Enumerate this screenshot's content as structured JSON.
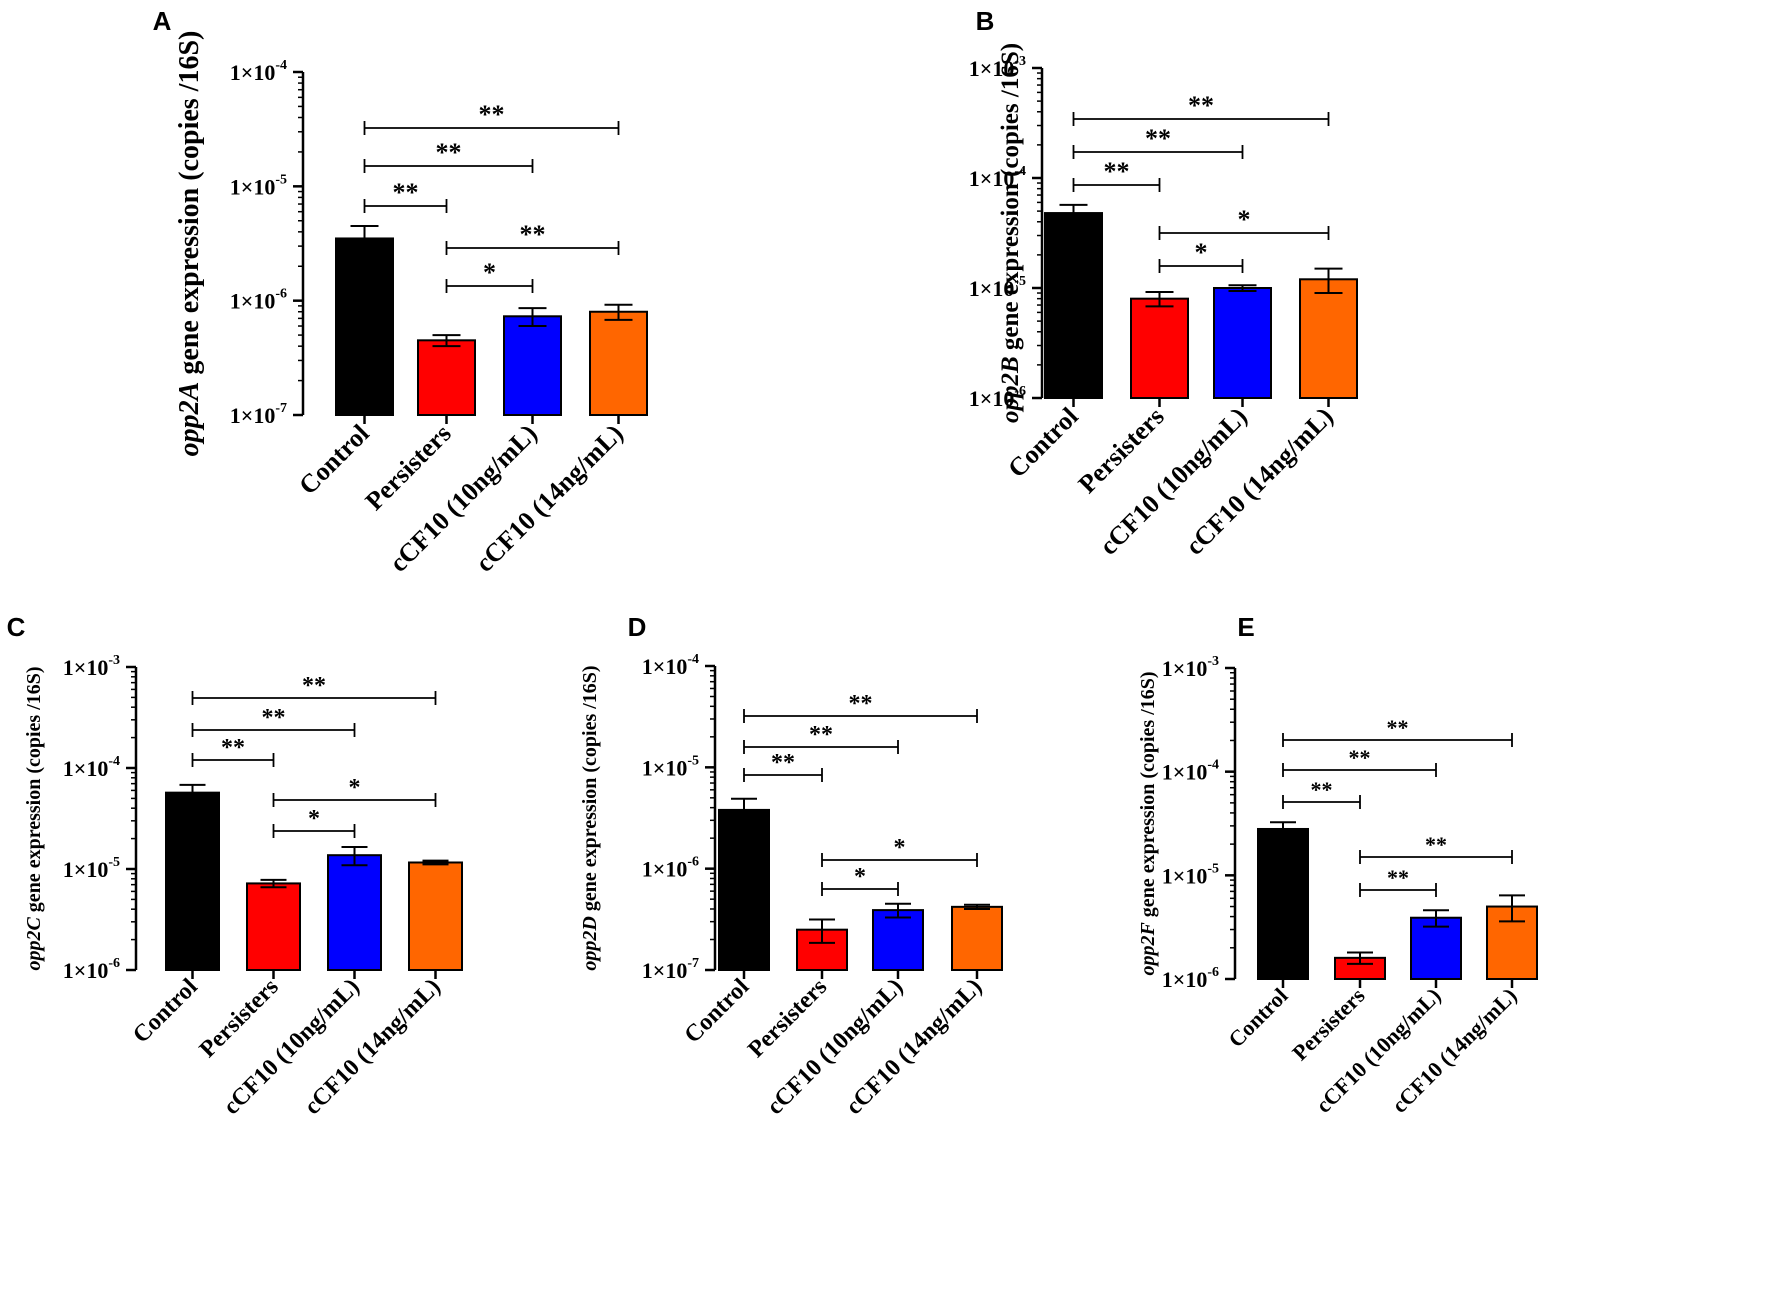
{
  "figure": {
    "colors": {
      "Control": "#000000",
      "Persisters": "#ff0000",
      "cCF10 (10ng/mL)": "#0000ff",
      "cCF10 (14ng/mL)": "#ff6600"
    }
  },
  "chart_data": [
    {
      "panel": "A",
      "type": "bar",
      "yscale": "log",
      "gene": "opp2A",
      "ylabel_suffix": " gene expression (copies /16S)",
      "categories": [
        "Control",
        "Persisters",
        "cCF10 (10ng/mL)",
        "cCF10 (14ng/mL)"
      ],
      "values": [
        3.5e-06,
        4.5e-07,
        7.3e-07,
        8e-07
      ],
      "errors": [
        1e-06,
        5e-08,
        1.3e-07,
        1.2e-07
      ],
      "ylim": [
        1e-07,
        0.0001
      ],
      "yticks": [
        {
          "mantissa": "1×10",
          "exp": "-4"
        },
        {
          "mantissa": "1×10",
          "exp": "-5"
        },
        {
          "mantissa": "1×10",
          "exp": "-6"
        },
        {
          "mantissa": "1×10",
          "exp": "-7"
        }
      ],
      "significance": [
        {
          "from": 0,
          "to": 3,
          "label": "**"
        },
        {
          "from": 0,
          "to": 2,
          "label": "**"
        },
        {
          "from": 0,
          "to": 1,
          "label": "**"
        },
        {
          "from": 1,
          "to": 3,
          "label": "**"
        },
        {
          "from": 1,
          "to": 2,
          "label": "*"
        }
      ]
    },
    {
      "panel": "B",
      "type": "bar",
      "yscale": "log",
      "gene": "opp2B",
      "ylabel_suffix": " gene expression (copies /16S)",
      "categories": [
        "Control",
        "Persisters",
        "cCF10 (10ng/mL)",
        "cCF10 (14ng/mL)"
      ],
      "values": [
        4.8e-05,
        8e-06,
        1e-05,
        1.2e-05
      ],
      "errors": [
        9e-06,
        1.2e-06,
        6e-07,
        3e-06
      ],
      "ylim": [
        1e-06,
        0.001
      ],
      "yticks": [
        {
          "mantissa": "1×10",
          "exp": "-3"
        },
        {
          "mantissa": "1×10",
          "exp": "-4"
        },
        {
          "mantissa": "1×10",
          "exp": "-5"
        },
        {
          "mantissa": "1×10",
          "exp": "-6"
        }
      ],
      "significance": [
        {
          "from": 0,
          "to": 3,
          "label": "**"
        },
        {
          "from": 0,
          "to": 2,
          "label": "**"
        },
        {
          "from": 0,
          "to": 1,
          "label": "**"
        },
        {
          "from": 1,
          "to": 3,
          "label": "*"
        },
        {
          "from": 1,
          "to": 2,
          "label": "*"
        }
      ]
    },
    {
      "panel": "C",
      "type": "bar",
      "yscale": "log",
      "gene": "opp2C",
      "ylabel_suffix": " gene expression (copies /16S)",
      "categories": [
        "Control",
        "Persisters",
        "cCF10 (10ng/mL)",
        "cCF10 (14ng/mL)"
      ],
      "values": [
        5.7e-05,
        7.2e-06,
        1.37e-05,
        1.16e-05
      ],
      "errors": [
        1.1e-05,
        6e-07,
        2.8e-06,
        5e-07
      ],
      "ylim": [
        1e-06,
        0.001
      ],
      "yticks": [
        {
          "mantissa": "1×10",
          "exp": "-3"
        },
        {
          "mantissa": "1×10",
          "exp": "-4"
        },
        {
          "mantissa": "1×10",
          "exp": "-5"
        },
        {
          "mantissa": "1×10",
          "exp": "-6"
        }
      ],
      "significance": [
        {
          "from": 0,
          "to": 3,
          "label": "**"
        },
        {
          "from": 0,
          "to": 2,
          "label": "**"
        },
        {
          "from": 0,
          "to": 1,
          "label": "**"
        },
        {
          "from": 1,
          "to": 3,
          "label": "*"
        },
        {
          "from": 1,
          "to": 2,
          "label": "*"
        }
      ]
    },
    {
      "panel": "D",
      "type": "bar",
      "yscale": "log",
      "gene": "opp2D",
      "ylabel_suffix": " gene expression (copies /16S)",
      "categories": [
        "Control",
        "Persisters",
        "cCF10 (10ng/mL)",
        "cCF10 (14ng/mL)"
      ],
      "values": [
        3.8e-06,
        2.5e-07,
        3.9e-07,
        4.2e-07
      ],
      "errors": [
        1.1e-06,
        6.5e-08,
        6e-08,
        2e-08
      ],
      "ylim": [
        1e-07,
        0.0001
      ],
      "yticks": [
        {
          "mantissa": "1×10",
          "exp": "-4"
        },
        {
          "mantissa": "1×10",
          "exp": "-5"
        },
        {
          "mantissa": "1×10",
          "exp": "-6"
        },
        {
          "mantissa": "1×10",
          "exp": "-7"
        }
      ],
      "significance": [
        {
          "from": 0,
          "to": 3,
          "label": "**"
        },
        {
          "from": 0,
          "to": 2,
          "label": "**"
        },
        {
          "from": 0,
          "to": 1,
          "label": "**"
        },
        {
          "from": 1,
          "to": 3,
          "label": "*"
        },
        {
          "from": 1,
          "to": 2,
          "label": "*"
        }
      ]
    },
    {
      "panel": "E",
      "type": "bar",
      "yscale": "log",
      "gene": "opp2F",
      "ylabel_suffix": " gene expression (copies /16S)",
      "categories": [
        "Control",
        "Persisters",
        "cCF10 (10ng/mL)",
        "cCF10 (14ng/mL)"
      ],
      "values": [
        2.8e-05,
        1.6e-06,
        3.9e-06,
        5e-06
      ],
      "errors": [
        4.5e-06,
        2e-07,
        7e-07,
        1.4e-06
      ],
      "ylim": [
        1e-06,
        0.001
      ],
      "yticks": [
        {
          "mantissa": "1×10",
          "exp": "-3"
        },
        {
          "mantissa": "1×10",
          "exp": "-4"
        },
        {
          "mantissa": "1×10",
          "exp": "-5"
        },
        {
          "mantissa": "1×10",
          "exp": "-6"
        }
      ],
      "significance": [
        {
          "from": 0,
          "to": 3,
          "label": "**"
        },
        {
          "from": 0,
          "to": 2,
          "label": "**"
        },
        {
          "from": 0,
          "to": 1,
          "label": "**"
        },
        {
          "from": 1,
          "to": 3,
          "label": "**"
        },
        {
          "from": 1,
          "to": 2,
          "label": "**"
        }
      ]
    }
  ]
}
